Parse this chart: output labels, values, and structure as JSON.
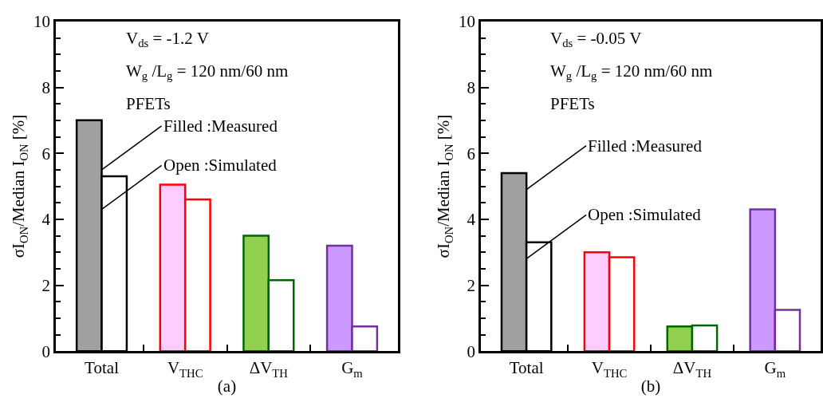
{
  "chart_data": [
    {
      "type": "bar",
      "xlabel": "(a)",
      "ylabel": "σI$_{ON}$/Median I$_{ON}$ [%]",
      "categories": [
        "Total",
        "V$_{THC}$",
        "ΔV$_{TH}$",
        "G$_{m}$"
      ],
      "ylim": [
        0,
        10
      ],
      "yticks": [
        0,
        2,
        4,
        6,
        8,
        10
      ],
      "series": [
        {
          "colors": [
            "#a0a0a0",
            "#ffccff",
            "#92d050",
            "#cc99ff"
          ],
          "values": [
            7.0,
            5.05,
            3.5,
            3.2
          ]
        },
        {
          "colors": [
            "#000000",
            "#ff0000",
            "#006600",
            "#7030a0"
          ],
          "values": [
            5.3,
            4.6,
            2.15,
            0.75
          ]
        }
      ],
      "annotations": [
        "V$_{ds}$ = -1.2 V",
        "W$_{g}$ /L$_{g}$ = 120 nm/60 nm",
        "PFETs",
        {
          "text": "Filled :Measured",
          "x": "Total",
          "y": 5.5
        },
        {
          "text": "Open :Simulated",
          "x": "Total",
          "y": 4.3
        }
      ]
    },
    {
      "type": "bar",
      "xlabel": "(b)",
      "ylabel": "σI$_{ON}$/Median I$_{ON}$ [%]",
      "categories": [
        "Total",
        "V$_{THC}$",
        "ΔV$_{TH}$",
        "G$_{m}$"
      ],
      "ylim": [
        0,
        10
      ],
      "yticks": [
        0,
        2,
        4,
        6,
        8,
        10
      ],
      "series": [
        {
          "colors": [
            "#a0a0a0",
            "#ffccff",
            "#92d050",
            "#cc99ff"
          ],
          "values": [
            5.4,
            3.0,
            0.75,
            4.3
          ]
        },
        {
          "colors": [
            "#000000",
            "#ff0000",
            "#006600",
            "#7030a0"
          ],
          "values": [
            3.3,
            2.85,
            0.78,
            1.25
          ]
        }
      ],
      "annotations": [
        "V$_{ds}$ = -0.05 V",
        "W$_{g}$ /L$_{g}$ = 120 nm/60 nm",
        "PFETs",
        {
          "text": "Filled :Measured",
          "x": "Total",
          "y": 4.9
        },
        {
          "text": "Open :Simulated",
          "x": "Total",
          "y": 2.8
        }
      ]
    }
  ]
}
